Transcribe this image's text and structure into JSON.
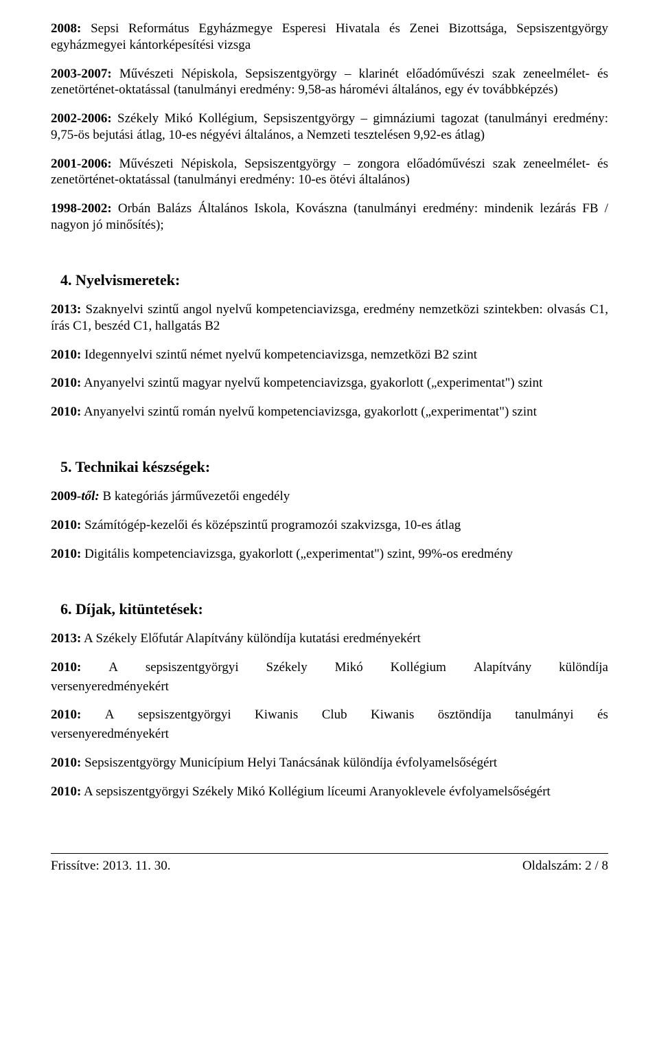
{
  "paragraphs": {
    "p1": {
      "bold": "2008:",
      "rest": " Sepsi Református Egyházmegye Esperesi Hivatala és Zenei Bizottsága, Sepsiszentgyörgy egyházmegyei kántorképesítési vizsga"
    },
    "p2": {
      "bold": "2003-2007:",
      "rest": " Művészeti Népiskola, Sepsiszentgyörgy – klarinét előadóművészi szak zeneelmélet- és zenetörténet-oktatással (tanulmányi eredmény: 9,58-as háromévi általános, egy év továbbképzés)"
    },
    "p3": {
      "bold": "2002-2006:",
      "rest": " Székely Mikó Kollégium, Sepsiszentgyörgy – gimnáziumi tagozat (tanulmányi eredmény: 9,75-ös bejutási átlag, 10-es négyévi általános, a Nemzeti tesztelésen 9,92-es átlag)"
    },
    "p4": {
      "bold": "2001-2006:",
      "rest": " Művészeti Népiskola, Sepsiszentgyörgy – zongora előadóművészi szak zeneelmélet- és zenetörténet-oktatással (tanulmányi eredmény: 10-es ötévi általános)"
    },
    "p5": {
      "bold": "1998-2002:",
      "rest": " Orbán Balázs Általános Iskola, Kovászna (tanulmányi eredmény: mindenik lezárás FB / nagyon jó minősítés);"
    }
  },
  "section4": {
    "heading": "4. Nyelvismeretek:",
    "items": {
      "i1": {
        "bold": "2013:",
        "rest": " Szaknyelvi szintű angol nyelvű kompetenciavizsga, eredmény nemzetközi szintekben: olvasás C1, írás C1, beszéd C1, hallgatás B2"
      },
      "i2": {
        "bold": "2010:",
        "rest": " Idegennyelvi szintű német nyelvű kompetenciavizsga, nemzetközi B2 szint"
      },
      "i3": {
        "bold": "2010:",
        "rest": " Anyanyelvi szintű magyar nyelvű kompetenciavizsga, gyakorlott („experimentat\") szint"
      },
      "i4": {
        "bold": "2010:",
        "rest": " Anyanyelvi szintű román nyelvű kompetenciavizsga, gyakorlott („experimentat\") szint"
      }
    }
  },
  "section5": {
    "heading": "5. Technikai készségek:",
    "items": {
      "i1": {
        "bold": "2009",
        "italic": "-től:",
        "rest": " B kategóriás járművezetői engedély"
      },
      "i2": {
        "bold": "2010:",
        "rest": " Számítógép-kezelői és középszintű programozói szakvizsga, 10-es átlag"
      },
      "i3": {
        "bold": "2010:",
        "rest": " Digitális kompetenciavizsga, gyakorlott („experimentat\") szint, 99%-os eredmény"
      }
    }
  },
  "section6": {
    "heading": "6. Díjak, kitüntetések:",
    "items": {
      "i1": {
        "bold": "2013:",
        "rest": " A Székely Előfutár Alapítvány különdíja kutatási eredményekért"
      },
      "i2": {
        "bold": "2010:",
        "w1": "A",
        "w2": "sepsiszentgyörgyi",
        "w3": "Székely",
        "w4": "Mikó",
        "w5": "Kollégium",
        "w6": "Alapítvány",
        "w7": "különdíja",
        "line2": "versenyeredményekért"
      },
      "i3": {
        "bold": "2010:",
        "w1": "A",
        "w2": "sepsiszentgyörgyi",
        "w3": "Kiwanis",
        "w4": "Club",
        "w5": "Kiwanis",
        "w6": "ösztöndíja",
        "w7": "tanulmányi",
        "w8": "és",
        "line2": "versenyeredményekért"
      },
      "i4": {
        "bold": "2010:",
        "rest": " Sepsiszentgyörgy Municípium Helyi Tanácsának különdíja évfolyamelsőségért"
      },
      "i5": {
        "bold": "2010:",
        "rest": " A sepsiszentgyörgyi Székely Mikó Kollégium líceumi Aranyoklevele évfolyamelsőségért"
      }
    }
  },
  "footer": {
    "left": "Frissítve: 2013. 11. 30.",
    "right": "Oldalszám: 2 / 8"
  }
}
